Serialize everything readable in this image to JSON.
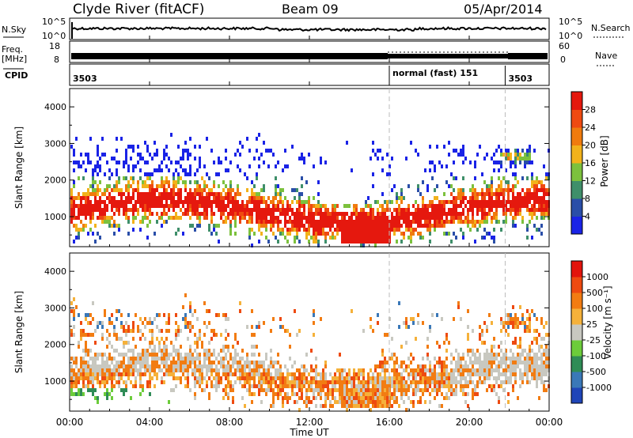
{
  "header": {
    "station": "Clyde River (fitACF)",
    "beam": "Beam 09",
    "date": "05/Apr/2014"
  },
  "top_panels": {
    "nsky_label": "N.Sky",
    "nsearch_label": "N.Search",
    "nsky_ticks": [
      "10^5",
      "10^0"
    ],
    "nsearch_ticks": [
      "10^5",
      "10^0"
    ],
    "freq_label_1": "Freq.",
    "freq_label_2": "[MHz]",
    "freq_ticks": [
      "18",
      "8"
    ],
    "nave_label": "Nave",
    "nave_ticks": [
      "60",
      "0"
    ],
    "cpid_label": "CPID",
    "cpid_segments": [
      {
        "start_hour": 0,
        "end_hour": 16,
        "label": "3503"
      },
      {
        "start_hour": 16,
        "end_hour": 21.8,
        "label": "normal (fast) 151"
      },
      {
        "start_hour": 21.8,
        "end_hour": 24,
        "label": "3503"
      }
    ]
  },
  "chart_data": [
    {
      "type": "heatmap",
      "title": "",
      "xlabel": "Time UT",
      "ylabel": "Slant Range [km]",
      "xlim": [
        0,
        24
      ],
      "ylim": [
        180,
        4500
      ],
      "yticks": [
        1000,
        2000,
        3000,
        4000
      ],
      "colorbar_label": "Power [dB]",
      "colorbar_ticks": [
        "4",
        "8",
        "12",
        "16",
        "20",
        "24",
        "28"
      ],
      "colorbar_colors": [
        "#1a23e6",
        "#2a4ea8",
        "#3f8f6a",
        "#7cc13d",
        "#f2b21b",
        "#f07b0e",
        "#ef4a11",
        "#e5180e"
      ],
      "mode_boundaries_hours": [
        16,
        21.8
      ]
    },
    {
      "type": "heatmap",
      "title": "",
      "xlabel": "Time UT",
      "ylabel": "Slant Range [km]",
      "xlim": [
        0,
        24
      ],
      "ylim": [
        180,
        4500
      ],
      "yticks": [
        1000,
        2000,
        3000,
        4000
      ],
      "colorbar_label": "Velocity [m s⁻¹]",
      "colorbar_ticks": [
        "1000",
        "500",
        "100",
        "25",
        "-25",
        "-100",
        "-500",
        "-1000"
      ],
      "colorbar_colors": [
        "#1f45b8",
        "#3a78b8",
        "#2f8c56",
        "#6ccc3a",
        "#c8c8c0",
        "#f5b13a",
        "#f27c12",
        "#ee4a10",
        "#e2140c"
      ],
      "mode_boundaries_hours": [
        16,
        21.8
      ]
    }
  ],
  "x_axis": {
    "ticks": [
      "00:00",
      "04:00",
      "08:00",
      "12:00",
      "16:00",
      "20:00",
      "00:00"
    ],
    "label": "Time UT"
  }
}
